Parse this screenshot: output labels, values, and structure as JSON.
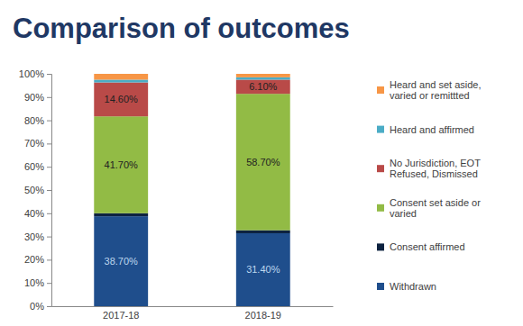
{
  "chart_data": {
    "type": "bar",
    "title": "Comparison of outcomes",
    "categories": [
      "2017-18",
      "2018-19"
    ],
    "stacked": true,
    "legend": "right",
    "grid": false,
    "data_labels": true,
    "ylim": [
      0,
      100
    ],
    "yticks": [
      {
        "value": 0,
        "label": "0%"
      },
      {
        "value": 10,
        "label": "10%"
      },
      {
        "value": 20,
        "label": "20%"
      },
      {
        "value": 30,
        "label": "30%"
      },
      {
        "value": 40,
        "label": "40%"
      },
      {
        "value": 50,
        "label": "50%"
      },
      {
        "value": 60,
        "label": "60%"
      },
      {
        "value": 70,
        "label": "70%"
      },
      {
        "value": 80,
        "label": "80%"
      },
      {
        "value": 90,
        "label": "90%"
      },
      {
        "value": 100,
        "label": "100%"
      }
    ],
    "series": [
      {
        "name": "Withdrawn",
        "color": "#1f4e8c",
        "values": [
          38.7,
          31.4
        ],
        "value_labels": [
          "38.70%",
          "31.40%"
        ]
      },
      {
        "name": "Consent affirmed",
        "color": "#0d2240",
        "values": [
          1.3,
          1.3
        ],
        "value_labels": [
          null,
          null
        ]
      },
      {
        "name": "Consent set aside or varied",
        "color": "#92bb45",
        "values": [
          41.7,
          58.7
        ],
        "value_labels": [
          "41.70%",
          "58.70%"
        ]
      },
      {
        "name": "No Jurisdiction, EOT Refused, Dismissed",
        "color": "#b94a48",
        "values": [
          14.6,
          6.1
        ],
        "value_labels": [
          "14.60%",
          "6.10%"
        ]
      },
      {
        "name": "Heard and affirmed",
        "color": "#4bacc6",
        "values": [
          1.2,
          1.0
        ],
        "value_labels": [
          null,
          null
        ]
      },
      {
        "name": "Heard and set aside, varied or remittted",
        "color": "#f79646",
        "values": [
          2.5,
          1.5
        ],
        "value_labels": [
          null,
          null
        ]
      }
    ]
  }
}
